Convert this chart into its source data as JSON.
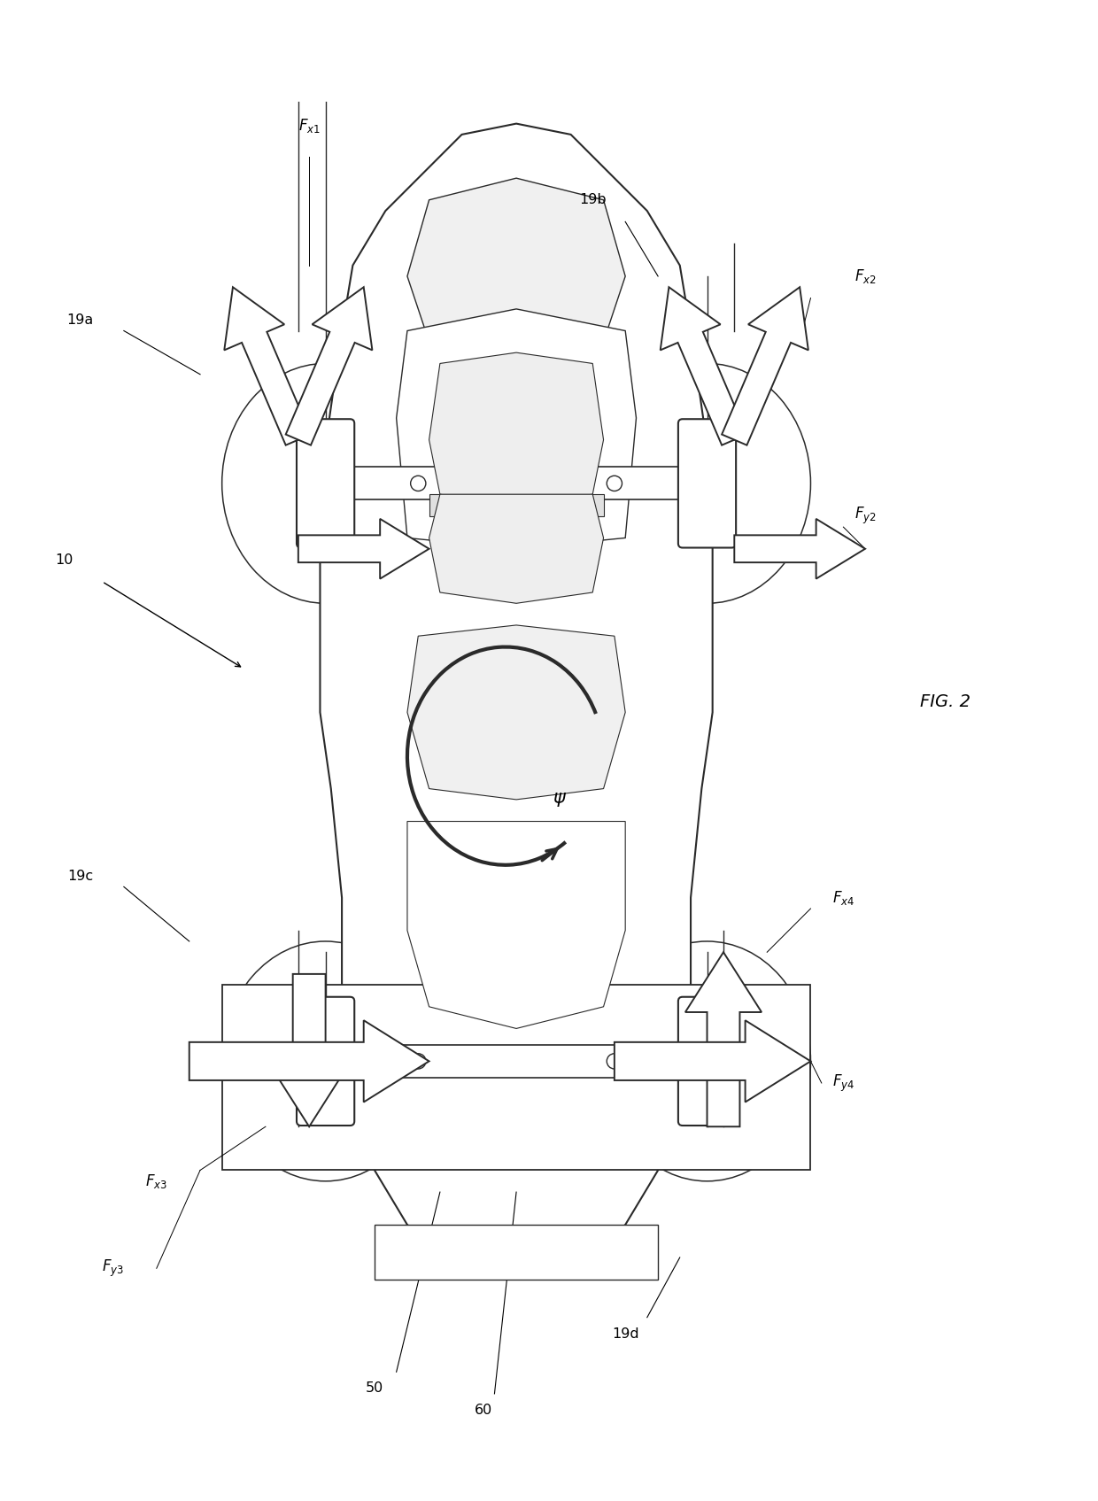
{
  "fig_label": "FIG. 2",
  "bg_color": "#ffffff",
  "line_color": "#2a2a2a",
  "fig_width": 12.4,
  "fig_height": 16.95,
  "labels": {
    "fig_label": "FIG. 2",
    "ref_10": "10",
    "ref_19a": "19a",
    "ref_19b": "19b",
    "ref_19c": "19c",
    "ref_19d": "19d",
    "ref_50": "50",
    "ref_60": "60"
  }
}
